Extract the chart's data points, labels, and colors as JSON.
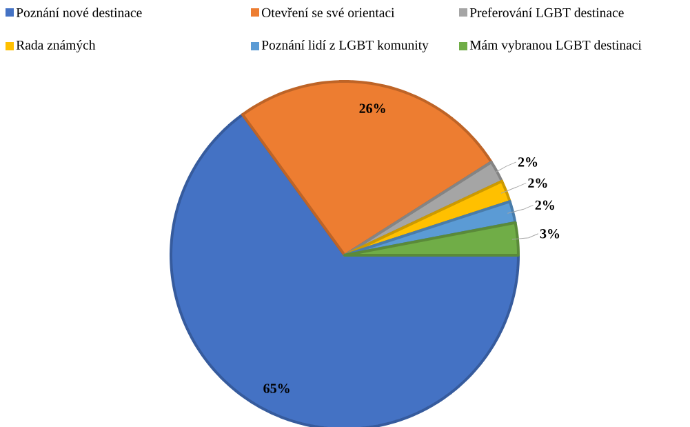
{
  "chart_data": {
    "type": "pie",
    "categories": [
      "Poznání nové destinace",
      "Otevření se své orientaci",
      "Preferování LGBT destinace",
      "Rada známých",
      "Poznání lidí z LGBT komunity",
      "Mám vybranou LGBT destinaci"
    ],
    "values": [
      65,
      26,
      2,
      2,
      2,
      3
    ],
    "value_labels": [
      "65%",
      "26%",
      "2%",
      "2%",
      "2%",
      "3%"
    ],
    "colors": [
      "#4472c4",
      "#ed7d31",
      "#a5a5a5",
      "#ffc000",
      "#5b9bd5",
      "#70ad47"
    ],
    "legend": "top"
  }
}
